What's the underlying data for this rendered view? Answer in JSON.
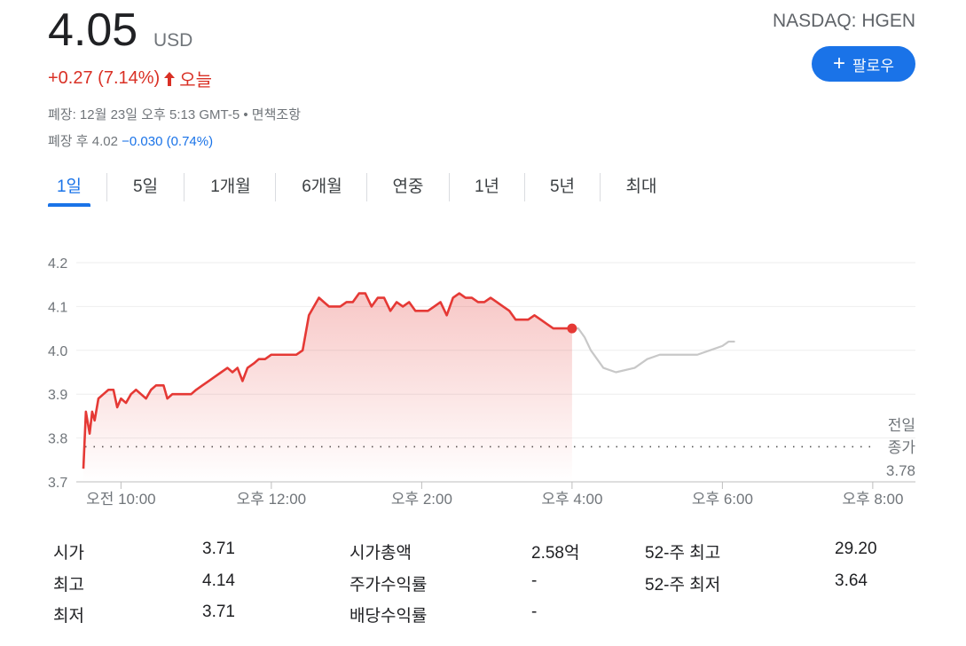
{
  "quote": {
    "price": "4.05",
    "currency": "USD",
    "exchange": "NASDAQ: HGEN",
    "change": "+0.27 (7.14%)",
    "today": "오늘",
    "follow_label": "팔로우",
    "closed_text": "폐장: 12월 23일 오후 5:13 GMT-5 • 면책조항",
    "after_hours_prefix": "폐장 후 4.02",
    "after_hours_change": "−0.030 (0.74%)",
    "colors": {
      "up": "#d93025",
      "down": "#1a73e8",
      "accent": "#1a73e8"
    }
  },
  "tabs": [
    {
      "label": "1일",
      "active": true
    },
    {
      "label": "5일"
    },
    {
      "label": "1개월"
    },
    {
      "label": "6개월"
    },
    {
      "label": "연중"
    },
    {
      "label": "1년"
    },
    {
      "label": "5년"
    },
    {
      "label": "최대"
    }
  ],
  "chart_data": {
    "type": "line",
    "y_ticks": [
      "4.2",
      "4.1",
      "4.0",
      "3.9",
      "3.8",
      "3.7"
    ],
    "ylim": [
      3.7,
      4.2
    ],
    "x_ticks": [
      "오전 10:00",
      "오후 12:00",
      "오후 2:00",
      "오후 4:00",
      "오후 6:00",
      "오후 8:00"
    ],
    "grid": true,
    "previous_close": {
      "label_line1": "전일",
      "label_line2": "종가",
      "value": 3.78
    },
    "series": [
      {
        "session": "regular",
        "color": "#e53935",
        "points": [
          [
            "09:30",
            3.73
          ],
          [
            "09:32",
            3.86
          ],
          [
            "09:35",
            3.81
          ],
          [
            "09:37",
            3.86
          ],
          [
            "09:39",
            3.84
          ],
          [
            "09:42",
            3.89
          ],
          [
            "09:46",
            3.9
          ],
          [
            "09:50",
            3.91
          ],
          [
            "09:54",
            3.91
          ],
          [
            "09:57",
            3.87
          ],
          [
            "10:00",
            3.89
          ],
          [
            "10:04",
            3.88
          ],
          [
            "10:08",
            3.9
          ],
          [
            "10:12",
            3.91
          ],
          [
            "10:16",
            3.9
          ],
          [
            "10:20",
            3.89
          ],
          [
            "10:24",
            3.91
          ],
          [
            "10:28",
            3.92
          ],
          [
            "10:34",
            3.92
          ],
          [
            "10:37",
            3.89
          ],
          [
            "10:41",
            3.9
          ],
          [
            "10:45",
            3.9
          ],
          [
            "10:50",
            3.9
          ],
          [
            "10:56",
            3.9
          ],
          [
            "11:00",
            3.91
          ],
          [
            "11:05",
            3.92
          ],
          [
            "11:10",
            3.93
          ],
          [
            "11:15",
            3.94
          ],
          [
            "11:20",
            3.95
          ],
          [
            "11:25",
            3.96
          ],
          [
            "11:29",
            3.95
          ],
          [
            "11:33",
            3.96
          ],
          [
            "11:37",
            3.93
          ],
          [
            "11:41",
            3.96
          ],
          [
            "11:46",
            3.97
          ],
          [
            "11:50",
            3.98
          ],
          [
            "11:55",
            3.98
          ],
          [
            "12:00",
            3.99
          ],
          [
            "12:05",
            3.99
          ],
          [
            "12:10",
            3.99
          ],
          [
            "12:15",
            3.99
          ],
          [
            "12:20",
            3.99
          ],
          [
            "12:25",
            4.0
          ],
          [
            "12:30",
            4.08
          ],
          [
            "12:34",
            4.1
          ],
          [
            "12:38",
            4.12
          ],
          [
            "12:42",
            4.11
          ],
          [
            "12:46",
            4.1
          ],
          [
            "12:50",
            4.1
          ],
          [
            "12:55",
            4.1
          ],
          [
            "13:00",
            4.11
          ],
          [
            "13:05",
            4.11
          ],
          [
            "13:10",
            4.13
          ],
          [
            "13:15",
            4.13
          ],
          [
            "13:20",
            4.1
          ],
          [
            "13:25",
            4.12
          ],
          [
            "13:30",
            4.12
          ],
          [
            "13:35",
            4.09
          ],
          [
            "13:40",
            4.11
          ],
          [
            "13:45",
            4.1
          ],
          [
            "13:50",
            4.11
          ],
          [
            "13:55",
            4.09
          ],
          [
            "14:00",
            4.09
          ],
          [
            "14:05",
            4.09
          ],
          [
            "14:10",
            4.1
          ],
          [
            "14:15",
            4.11
          ],
          [
            "14:20",
            4.08
          ],
          [
            "14:25",
            4.12
          ],
          [
            "14:30",
            4.13
          ],
          [
            "14:35",
            4.12
          ],
          [
            "14:40",
            4.12
          ],
          [
            "14:45",
            4.11
          ],
          [
            "14:50",
            4.11
          ],
          [
            "14:55",
            4.12
          ],
          [
            "15:00",
            4.11
          ],
          [
            "15:05",
            4.1
          ],
          [
            "15:10",
            4.09
          ],
          [
            "15:15",
            4.07
          ],
          [
            "15:20",
            4.07
          ],
          [
            "15:25",
            4.07
          ],
          [
            "15:30",
            4.08
          ],
          [
            "15:35",
            4.07
          ],
          [
            "15:40",
            4.06
          ],
          [
            "15:45",
            4.05
          ],
          [
            "16:00",
            4.05
          ]
        ]
      },
      {
        "session": "after-hours",
        "color": "#c8c8c8",
        "points": [
          [
            "16:00",
            4.05
          ],
          [
            "16:05",
            4.05
          ],
          [
            "16:10",
            4.03
          ],
          [
            "16:15",
            4.0
          ],
          [
            "16:25",
            3.96
          ],
          [
            "16:35",
            3.95
          ],
          [
            "16:50",
            3.96
          ],
          [
            "17:00",
            3.98
          ],
          [
            "17:10",
            3.99
          ],
          [
            "17:20",
            3.99
          ],
          [
            "17:30",
            3.99
          ],
          [
            "17:40",
            3.99
          ],
          [
            "17:50",
            4.0
          ],
          [
            "18:00",
            4.01
          ],
          [
            "18:05",
            4.02
          ],
          [
            "18:10",
            4.02
          ]
        ]
      }
    ]
  },
  "stats": [
    {
      "label": "시가",
      "value": "3.71"
    },
    {
      "label": "최고",
      "value": "4.14"
    },
    {
      "label": "최저",
      "value": "3.71"
    },
    {
      "label": "시가총액",
      "value": "2.58억"
    },
    {
      "label": "주가수익률",
      "value": "-"
    },
    {
      "label": "배당수익률",
      "value": "-"
    },
    {
      "label": "52-주 최고",
      "value": "29.20"
    },
    {
      "label": "52-주 최저",
      "value": "3.64"
    }
  ]
}
